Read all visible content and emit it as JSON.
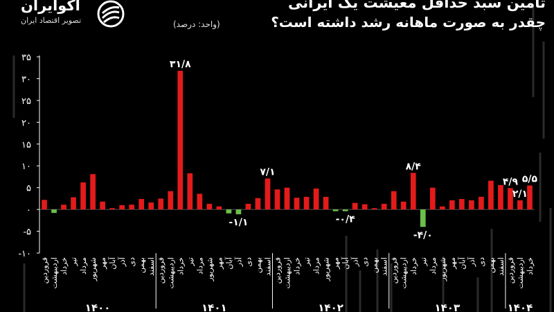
{
  "header": {
    "title_line1": "تامین سبد حداقل معیشت یک ایرانی",
    "title_line2": "چقدر به صورت ماهانه رشد داشته است؟",
    "unit": "(واحد: درصد)",
    "logo_name": "اکوایران",
    "logo_tagline": "تصویر اقتصاد ایران"
  },
  "colors": {
    "positive": "#e31b1b",
    "negative": "#6cbf4a",
    "axis": "#ffffff",
    "background": "#000000"
  },
  "chart_data": {
    "type": "bar",
    "title": "",
    "xlabel": "",
    "ylabel": "",
    "ylim": [
      -10,
      35
    ],
    "yticks": [
      "-۱۰",
      "-۵",
      "۰",
      "۵",
      "۱۰",
      "۱۵",
      "۲۰",
      "۲۵",
      "۳۰",
      "۳۵"
    ],
    "ytick_values": [
      -10,
      -5,
      0,
      5,
      10,
      15,
      20,
      25,
      30,
      35
    ],
    "categories": [
      "فروردین",
      "اردیبهشت",
      "خرداد",
      "تیر",
      "مرداد",
      "شهریور",
      "مهر",
      "آبان",
      "آذر",
      "دی",
      "بهمن",
      "اسفند",
      "فروردین",
      "اردیبهشت",
      "خرداد",
      "تیر",
      "مرداد",
      "شهریور",
      "مهر",
      "آبان",
      "آذر",
      "دی",
      "بهمن",
      "اسفند",
      "فروردین",
      "اردیبهشت",
      "خرداد",
      "تیر",
      "مرداد",
      "شهریور",
      "مهر",
      "آبان",
      "آذر",
      "دی",
      "بهمن",
      "اسفند",
      "فروردین",
      "اردیبهشت",
      "خرداد",
      "تیر",
      "مرداد",
      "شهریور",
      "مهر",
      "آبان",
      "آذر",
      "دی",
      "بهمن",
      "اسفند",
      "فروردین",
      "اردیبهشت",
      "خرداد"
    ],
    "values": [
      2.2,
      -0.8,
      1.1,
      2.8,
      6.2,
      8.1,
      1.8,
      0.3,
      1.0,
      1.1,
      2.4,
      1.6,
      2.5,
      4.2,
      31.8,
      8.3,
      3.6,
      1.3,
      0.7,
      -0.9,
      -1.1,
      1.3,
      2.6,
      7.1,
      4.6,
      5.0,
      2.7,
      2.9,
      4.8,
      2.9,
      -0.4,
      -0.4,
      1.5,
      1.2,
      0.3,
      1.3,
      4.2,
      1.8,
      8.4,
      -4.0,
      5.0,
      0.7,
      2.1,
      2.4,
      2.1,
      2.9,
      6.6,
      5.6,
      4.9,
      2.1,
      5.5
    ],
    "data_labels": [
      {
        "index": 14,
        "text": "۳۱/۸"
      },
      {
        "index": 20,
        "text": "-۱/۱"
      },
      {
        "index": 23,
        "text": "۷/۱"
      },
      {
        "index": 31,
        "text": "-۰/۴"
      },
      {
        "index": 38,
        "text": "۸/۴"
      },
      {
        "index": 39,
        "text": "-۴/۰"
      },
      {
        "index": 48,
        "text": "۴/۹"
      },
      {
        "index": 49,
        "text": "۲/۱"
      },
      {
        "index": 50,
        "text": "۵/۵"
      }
    ],
    "year_groups": [
      {
        "label": "۱۴۰۰",
        "start": 0,
        "end": 11
      },
      {
        "label": "۱۴۰۱",
        "start": 12,
        "end": 23
      },
      {
        "label": "۱۴۰۲",
        "start": 24,
        "end": 35
      },
      {
        "label": "۱۴۰۳",
        "start": 36,
        "end": 47
      },
      {
        "label": "۱۴۰۴",
        "start": 48,
        "end": 50
      }
    ]
  }
}
